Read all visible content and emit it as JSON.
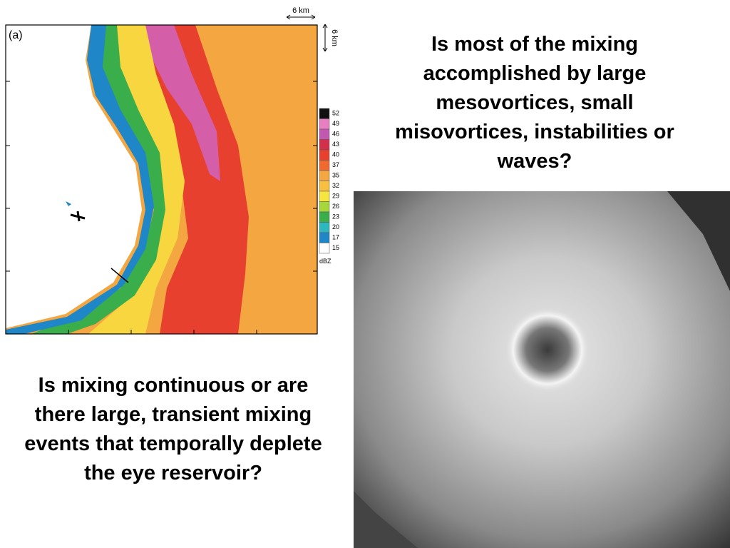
{
  "panel_label": "(a)",
  "scale_horizontal": "6 km",
  "scale_vertical": "6 km",
  "colorbar": {
    "levels": [
      "52",
      "49",
      "46",
      "43",
      "40",
      "37",
      "35",
      "32",
      "29",
      "26",
      "23",
      "20",
      "17",
      "15"
    ],
    "unit": "dBZ"
  },
  "question_top": "Is most of the mixing accomplished by large mesovortices, small misovortices, instabilities or waves?",
  "question_bottom": "Is mixing continuous or are there large, transient mixing events that temporally deplete the eye reservoir?"
}
